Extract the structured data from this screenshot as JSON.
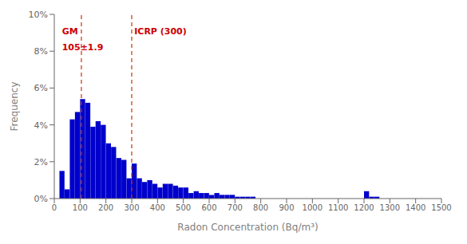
{
  "chart_data": {
    "type": "histogram",
    "xlabel": "Radon Concentration (Bq/m³)",
    "ylabel": "Frequency",
    "bins": [
      0,
      20,
      40,
      60,
      80,
      100,
      120,
      140,
      160,
      180,
      200,
      220,
      240,
      260,
      280,
      300,
      320,
      340,
      360,
      380,
      400,
      420,
      440,
      460,
      480,
      500,
      520,
      540,
      560,
      580,
      600,
      620,
      640,
      660,
      680,
      700,
      720,
      740,
      760,
      780,
      800,
      820,
      840,
      860,
      880,
      900,
      920,
      940,
      960,
      980,
      1000,
      1020,
      1040,
      1060,
      1080,
      1100,
      1120,
      1140,
      1160,
      1180,
      1200,
      1220,
      1240,
      1260,
      1280,
      1300,
      1320,
      1340,
      1360,
      1380,
      1400,
      1420,
      1440,
      1460,
      1480,
      1500
    ],
    "values": [
      0.0,
      0.015,
      0.005,
      0.043,
      0.047,
      0.054,
      0.052,
      0.039,
      0.042,
      0.04,
      0.03,
      0.028,
      0.022,
      0.021,
      0.011,
      0.019,
      0.011,
      0.009,
      0.01,
      0.008,
      0.006,
      0.008,
      0.008,
      0.007,
      0.006,
      0.006,
      0.003,
      0.004,
      0.003,
      0.003,
      0.002,
      0.003,
      0.002,
      0.002,
      0.002,
      0.001,
      0.001,
      0.001,
      0.001,
      0.0,
      0.0,
      0.0,
      0.0,
      0.0,
      0.0,
      0.0,
      0.0,
      0.0,
      0.0,
      0.0,
      0.0,
      0.0,
      0.0,
      0.0,
      0.0,
      0.0,
      0.0,
      0.0,
      0.0,
      0.0,
      0.004,
      0.001,
      0.001,
      0.0,
      0.0,
      0.0,
      0.0,
      0.0,
      0.0,
      0.0,
      0.0,
      0.0,
      0.0,
      0.0,
      0.0
    ],
    "color": "#0000CC",
    "xlim": [
      0,
      1500
    ],
    "ylim": [
      0,
      0.1
    ],
    "xticks": [
      0,
      100,
      200,
      300,
      400,
      500,
      600,
      700,
      800,
      900,
      1000,
      1100,
      1200,
      1300,
      1400,
      1500
    ],
    "yticks": [
      {
        "value": 0,
        "label": "0%"
      },
      {
        "value": 0.02,
        "label": "2%"
      },
      {
        "value": 0.04,
        "label": "4%"
      },
      {
        "value": 0.06,
        "label": "6%"
      },
      {
        "value": 0.08,
        "label": "8%"
      },
      {
        "value": 0.1,
        "label": "10%"
      }
    ],
    "grid": false,
    "vlines": [
      {
        "x": 105,
        "color": "#CC3300",
        "line_style": "dashed"
      },
      {
        "x": 300,
        "color": "#CC3300",
        "line_style": "dashed"
      }
    ],
    "annotations": [
      {
        "text": "GM",
        "x": 30,
        "y": 0.091,
        "color": "#CC0000"
      },
      {
        "text": "105±1.9",
        "x": 30,
        "y": 0.082,
        "color": "#CC0000"
      },
      {
        "text": "ICRP (300)",
        "x": 310,
        "y": 0.091,
        "color": "#CC0000"
      }
    ]
  }
}
